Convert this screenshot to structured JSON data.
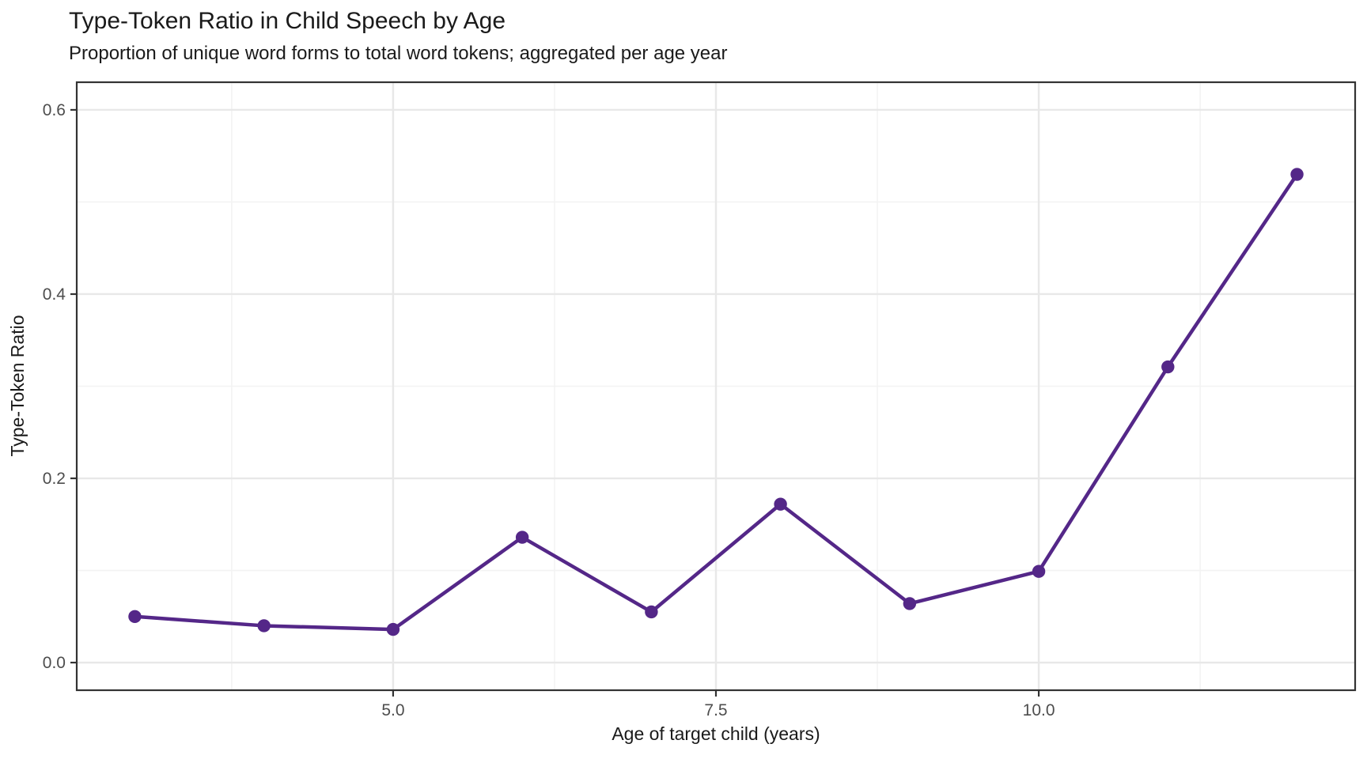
{
  "chart_data": {
    "type": "line",
    "title": "Type-Token Ratio in Child Speech by Age",
    "subtitle": "Proportion of unique word forms to total word tokens; aggregated per age year",
    "xlabel": "Age of target child (years)",
    "ylabel": "Type-Token Ratio",
    "x": [
      3,
      4,
      5,
      6,
      7,
      8,
      9,
      10,
      11,
      12
    ],
    "y": [
      0.05,
      0.04,
      0.036,
      0.136,
      0.055,
      0.172,
      0.064,
      0.099,
      0.321,
      0.53
    ],
    "xlim": [
      2.55,
      12.45
    ],
    "ylim": [
      -0.03,
      0.63
    ],
    "x_ticks": {
      "major": [
        5.0,
        7.5,
        10.0
      ],
      "major_labels": [
        "5.0",
        "7.5",
        "10.0"
      ],
      "minor": [
        3.75,
        6.25,
        8.75,
        11.25
      ]
    },
    "y_ticks": {
      "major": [
        0.0,
        0.2,
        0.4,
        0.6
      ],
      "major_labels": [
        "0.0",
        "0.2",
        "0.4",
        "0.6"
      ],
      "minor": [
        0.1,
        0.3,
        0.5
      ]
    },
    "grid": "major+minor",
    "legend": "none",
    "colors": {
      "line": "#542788",
      "point": "#542788",
      "panel_border": "#333333",
      "tick_mark": "#333333",
      "grid_major": "#e8e8e8",
      "grid_minor": "#f3f3f3",
      "tick_text": "#4d4d4d",
      "title_text": "#1a1a1a"
    }
  }
}
